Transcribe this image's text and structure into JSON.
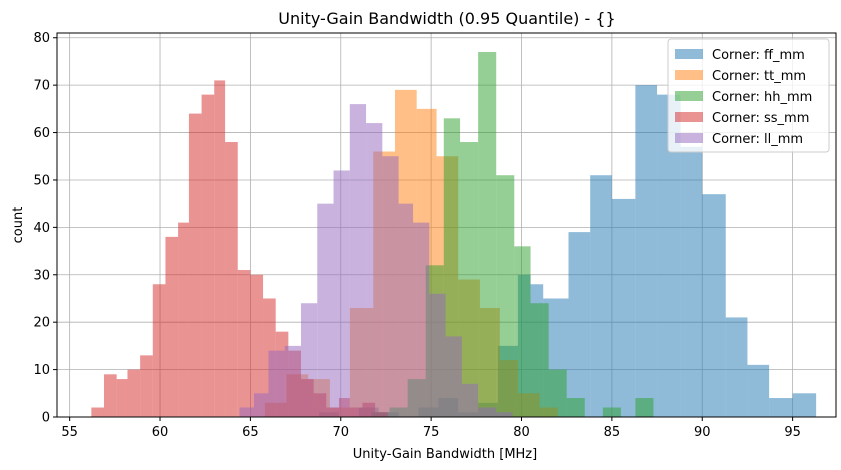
{
  "chart_data": {
    "type": "histogram",
    "title": "Unity-Gain Bandwidth (0.95 Quantile) - {}",
    "xlabel": "Unity-Gain Bandwidth [MHz]",
    "ylabel": "count",
    "xlim": [
      54.3,
      97.4
    ],
    "ylim": [
      0,
      81
    ],
    "xticks": [
      55,
      60,
      65,
      70,
      75,
      80,
      85,
      90,
      95
    ],
    "yticks": [
      0,
      10,
      20,
      30,
      40,
      50,
      60,
      70,
      80
    ],
    "grid": true,
    "legend_position": "top-right",
    "series": [
      {
        "name": "Corner: ff_mm",
        "color": "#1f77b4",
        "bins": [
          [
            68.8,
            69.9,
            1
          ],
          [
            69.9,
            71.0,
            0
          ],
          [
            71.0,
            72.1,
            2
          ],
          [
            72.1,
            73.2,
            1
          ],
          [
            73.2,
            74.3,
            0
          ],
          [
            74.3,
            75.4,
            2
          ],
          [
            75.4,
            76.5,
            4
          ],
          [
            76.5,
            77.6,
            1
          ],
          [
            77.6,
            78.7,
            3
          ],
          [
            78.7,
            79.8,
            15
          ],
          [
            79.8,
            80.5,
            30
          ],
          [
            80.5,
            81.2,
            28
          ],
          [
            81.2,
            82.6,
            25
          ],
          [
            82.6,
            83.8,
            39
          ],
          [
            83.8,
            85.0,
            51
          ],
          [
            85.0,
            86.3,
            46
          ],
          [
            86.3,
            87.5,
            70
          ],
          [
            87.5,
            88.8,
            68
          ],
          [
            88.8,
            90.0,
            57
          ],
          [
            90.0,
            91.3,
            47
          ],
          [
            91.3,
            92.5,
            21
          ],
          [
            92.5,
            93.7,
            11
          ],
          [
            93.7,
            95.0,
            4
          ],
          [
            95.0,
            96.3,
            5
          ]
        ]
      },
      {
        "name": "Corner: tt_mm",
        "color": "#ff7f0e",
        "bins": [
          [
            65.8,
            67.0,
            3
          ],
          [
            67.0,
            68.2,
            9
          ],
          [
            68.2,
            69.4,
            8
          ],
          [
            69.4,
            70.5,
            2
          ],
          [
            70.5,
            71.8,
            23
          ],
          [
            71.8,
            73.0,
            56
          ],
          [
            73.0,
            74.2,
            69
          ],
          [
            74.2,
            75.3,
            65
          ],
          [
            75.3,
            76.5,
            55
          ],
          [
            76.5,
            77.7,
            29
          ],
          [
            77.7,
            78.8,
            23
          ],
          [
            78.8,
            79.8,
            12
          ],
          [
            79.8,
            81.0,
            5
          ],
          [
            81.0,
            82.0,
            2
          ]
        ]
      },
      {
        "name": "Corner: hh_mm",
        "color": "#2ca02c",
        "bins": [
          [
            71.7,
            72.7,
            1
          ],
          [
            72.7,
            73.7,
            2
          ],
          [
            73.7,
            74.7,
            8
          ],
          [
            74.7,
            75.7,
            32
          ],
          [
            75.7,
            76.6,
            63
          ],
          [
            76.6,
            77.6,
            58
          ],
          [
            77.6,
            78.6,
            77
          ],
          [
            78.6,
            79.6,
            51
          ],
          [
            79.6,
            80.5,
            36
          ],
          [
            80.5,
            81.5,
            24
          ],
          [
            81.5,
            82.5,
            10
          ],
          [
            82.5,
            83.5,
            4
          ],
          [
            83.5,
            84.5,
            0
          ],
          [
            84.5,
            85.5,
            2
          ],
          [
            85.5,
            86.3,
            0
          ],
          [
            86.3,
            87.3,
            4
          ]
        ]
      },
      {
        "name": "Corner: ss_mm",
        "color": "#d62728",
        "bins": [
          [
            56.2,
            56.9,
            2
          ],
          [
            56.9,
            57.6,
            9
          ],
          [
            57.6,
            58.2,
            8
          ],
          [
            58.2,
            58.9,
            10
          ],
          [
            58.9,
            59.6,
            13
          ],
          [
            59.6,
            60.3,
            28
          ],
          [
            60.3,
            61.0,
            38
          ],
          [
            61.0,
            61.6,
            41
          ],
          [
            61.6,
            62.3,
            64
          ],
          [
            62.3,
            63.0,
            68
          ],
          [
            63.0,
            63.6,
            71
          ],
          [
            63.6,
            64.3,
            58
          ],
          [
            64.3,
            65.0,
            31
          ],
          [
            65.0,
            65.7,
            30
          ],
          [
            65.7,
            66.4,
            25
          ],
          [
            66.4,
            67.1,
            18
          ],
          [
            67.1,
            67.8,
            14
          ],
          [
            67.8,
            68.5,
            8
          ],
          [
            68.5,
            69.2,
            5
          ],
          [
            69.2,
            69.9,
            2
          ],
          [
            69.9,
            70.5,
            4
          ],
          [
            70.5,
            71.2,
            2
          ],
          [
            71.2,
            71.9,
            3
          ],
          [
            71.9,
            72.6,
            1
          ]
        ]
      },
      {
        "name": "Corner: ll_mm",
        "color": "#9467bd",
        "bins": [
          [
            64.4,
            65.2,
            2
          ],
          [
            65.2,
            66.0,
            5
          ],
          [
            66.0,
            66.9,
            14
          ],
          [
            66.9,
            67.8,
            15
          ],
          [
            67.8,
            68.7,
            24
          ],
          [
            68.7,
            69.6,
            45
          ],
          [
            69.6,
            70.5,
            52
          ],
          [
            70.5,
            71.4,
            66
          ],
          [
            71.4,
            72.3,
            62
          ],
          [
            72.3,
            73.2,
            55
          ],
          [
            73.2,
            74.0,
            45
          ],
          [
            74.0,
            74.9,
            41
          ],
          [
            74.9,
            75.8,
            26
          ],
          [
            75.8,
            76.7,
            17
          ],
          [
            76.7,
            77.6,
            7
          ],
          [
            77.6,
            78.6,
            2
          ],
          [
            78.6,
            79.5,
            1
          ]
        ]
      }
    ]
  }
}
